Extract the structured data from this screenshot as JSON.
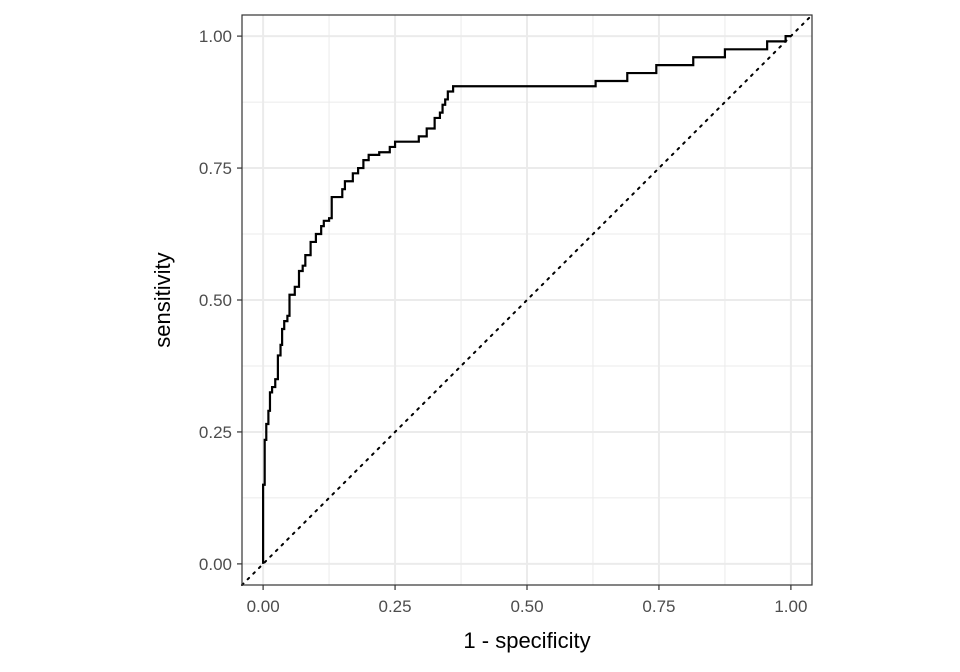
{
  "chart_data": {
    "type": "line",
    "xlabel": "1 - specificity",
    "ylabel": "sensitivity",
    "xlim": [
      -0.04,
      1.04
    ],
    "ylim": [
      -0.04,
      1.04
    ],
    "x_ticks": [
      0,
      0.25,
      0.5,
      0.75,
      1
    ],
    "x_tick_labels": [
      "0.00",
      "0.25",
      "0.50",
      "0.75",
      "1.00"
    ],
    "y_ticks": [
      0,
      0.25,
      0.5,
      0.75,
      1
    ],
    "y_tick_labels": [
      "0.00",
      "0.25",
      "0.50",
      "0.75",
      "1.00"
    ],
    "grid": true,
    "reference_line": {
      "style": "dotted",
      "x": [
        -0.04,
        1.04
      ],
      "y": [
        -0.04,
        1.04
      ]
    },
    "series": [
      {
        "style": "step",
        "x": [
          0.0,
          0.0,
          0.003,
          0.003,
          0.006,
          0.006,
          0.01,
          0.01,
          0.013,
          0.013,
          0.017,
          0.017,
          0.023,
          0.023,
          0.028,
          0.028,
          0.033,
          0.033,
          0.036,
          0.036,
          0.04,
          0.04,
          0.046,
          0.046,
          0.05,
          0.05,
          0.06,
          0.06,
          0.068,
          0.068,
          0.075,
          0.075,
          0.08,
          0.08,
          0.09,
          0.09,
          0.1,
          0.1,
          0.11,
          0.11,
          0.115,
          0.115,
          0.125,
          0.125,
          0.13,
          0.13,
          0.15,
          0.15,
          0.155,
          0.155,
          0.17,
          0.17,
          0.18,
          0.18,
          0.19,
          0.19,
          0.2,
          0.2,
          0.22,
          0.22,
          0.24,
          0.24,
          0.25,
          0.25,
          0.295,
          0.295,
          0.31,
          0.31,
          0.325,
          0.325,
          0.335,
          0.335,
          0.34,
          0.34,
          0.345,
          0.345,
          0.35,
          0.35,
          0.36,
          0.36,
          0.365,
          0.365,
          0.63,
          0.63,
          0.69,
          0.69,
          0.745,
          0.745,
          0.815,
          0.815,
          0.875,
          0.875,
          0.955,
          0.955,
          0.99,
          0.99,
          1.0
        ],
        "y": [
          0.0,
          0.15,
          0.15,
          0.235,
          0.235,
          0.265,
          0.265,
          0.29,
          0.29,
          0.325,
          0.325,
          0.335,
          0.335,
          0.35,
          0.35,
          0.395,
          0.395,
          0.415,
          0.415,
          0.445,
          0.445,
          0.46,
          0.46,
          0.47,
          0.47,
          0.51,
          0.51,
          0.525,
          0.525,
          0.555,
          0.555,
          0.565,
          0.565,
          0.585,
          0.585,
          0.61,
          0.61,
          0.625,
          0.625,
          0.64,
          0.64,
          0.65,
          0.65,
          0.655,
          0.655,
          0.695,
          0.695,
          0.71,
          0.71,
          0.725,
          0.725,
          0.74,
          0.74,
          0.75,
          0.75,
          0.765,
          0.765,
          0.775,
          0.775,
          0.78,
          0.78,
          0.79,
          0.79,
          0.8,
          0.8,
          0.81,
          0.81,
          0.825,
          0.825,
          0.845,
          0.845,
          0.855,
          0.855,
          0.87,
          0.87,
          0.88,
          0.88,
          0.895,
          0.895,
          0.905,
          0.905,
          0.905,
          0.905,
          0.915,
          0.915,
          0.93,
          0.93,
          0.945,
          0.945,
          0.96,
          0.96,
          0.975,
          0.975,
          0.99,
          0.99,
          1.0,
          1.0
        ]
      }
    ]
  },
  "colors": {
    "panel_border": "#333333",
    "grid": "#ebebeb",
    "line": "#000000",
    "tick_text": "#4d4d4d"
  }
}
